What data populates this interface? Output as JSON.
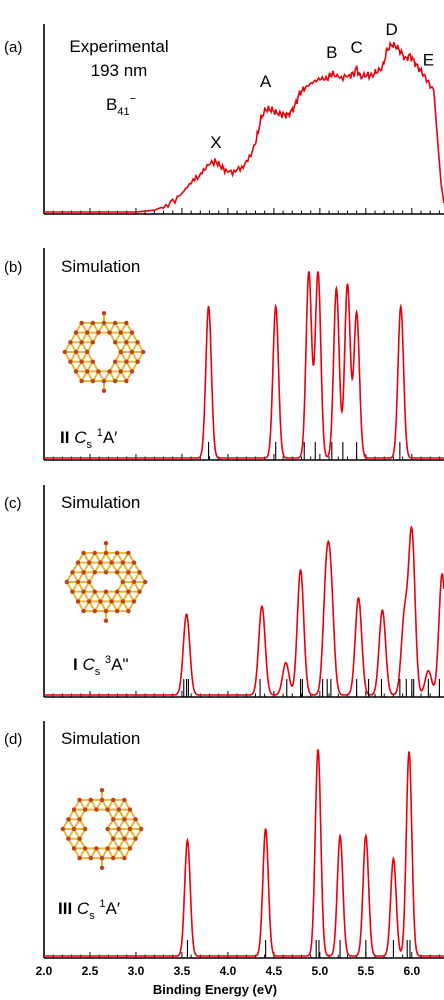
{
  "colors": {
    "curve": "#e8000b",
    "axis": "#000000",
    "stick": "#000000",
    "atom": "#c0401a",
    "bond": "#e8b63a"
  },
  "chart_data": [
    {
      "panel": "(a)",
      "type": "line",
      "title": "Experimental",
      "subtitle": "193 nm",
      "species_main": "B",
      "species_sub": "41",
      "species_sup": "−",
      "x_range": [
        2.0,
        6.35
      ],
      "y_range": [
        0,
        1.0
      ],
      "peak_labels": [
        {
          "text": "X",
          "x": 3.87,
          "y": 0.31
        },
        {
          "text": "A",
          "x": 4.41,
          "y": 0.65
        },
        {
          "text": "B",
          "x": 5.13,
          "y": 0.81
        },
        {
          "text": "C",
          "x": 5.4,
          "y": 0.84
        },
        {
          "text": "D",
          "x": 5.78,
          "y": 0.94
        },
        {
          "text": "E",
          "x": 6.18,
          "y": 0.77
        }
      ],
      "spectrum": [
        [
          2.0,
          0
        ],
        [
          3.0,
          0
        ],
        [
          3.2,
          0.01
        ],
        [
          3.35,
          0.04
        ],
        [
          3.5,
          0.1
        ],
        [
          3.62,
          0.17
        ],
        [
          3.72,
          0.22
        ],
        [
          3.8,
          0.27
        ],
        [
          3.87,
          0.28
        ],
        [
          3.93,
          0.25
        ],
        [
          4.0,
          0.22
        ],
        [
          4.1,
          0.23
        ],
        [
          4.2,
          0.27
        ],
        [
          4.3,
          0.38
        ],
        [
          4.36,
          0.52
        ],
        [
          4.41,
          0.57
        ],
        [
          4.47,
          0.57
        ],
        [
          4.53,
          0.55
        ],
        [
          4.6,
          0.54
        ],
        [
          4.66,
          0.54
        ],
        [
          4.72,
          0.58
        ],
        [
          4.78,
          0.66
        ],
        [
          4.84,
          0.69
        ],
        [
          4.92,
          0.72
        ],
        [
          5.0,
          0.74
        ],
        [
          5.08,
          0.74
        ],
        [
          5.13,
          0.77
        ],
        [
          5.2,
          0.75
        ],
        [
          5.3,
          0.75
        ],
        [
          5.37,
          0.77
        ],
        [
          5.4,
          0.8
        ],
        [
          5.44,
          0.75
        ],
        [
          5.5,
          0.76
        ],
        [
          5.57,
          0.76
        ],
        [
          5.62,
          0.78
        ],
        [
          5.68,
          0.8
        ],
        [
          5.73,
          0.9
        ],
        [
          5.78,
          0.93
        ],
        [
          5.83,
          0.92
        ],
        [
          5.88,
          0.89
        ],
        [
          5.93,
          0.85
        ],
        [
          5.98,
          0.87
        ],
        [
          6.02,
          0.84
        ],
        [
          6.07,
          0.8
        ],
        [
          6.12,
          0.77
        ],
        [
          6.18,
          0.72
        ],
        [
          6.24,
          0.67
        ],
        [
          6.28,
          0.4
        ],
        [
          6.32,
          0.15
        ],
        [
          6.35,
          0.05
        ]
      ]
    },
    {
      "panel": "(b)",
      "type": "line",
      "title": "Simulation",
      "isomer": "II",
      "symmetry": "C",
      "symmetry_sub": "s",
      "state_sup": "1",
      "state": "A′",
      "x_range": [
        2.0,
        6.35
      ],
      "y_range": [
        0,
        1.0
      ],
      "width": 0.03,
      "peaks": [
        {
          "x": 3.79,
          "h": 0.75
        },
        {
          "x": 4.52,
          "h": 0.75
        },
        {
          "x": 4.88,
          "h": 0.92
        },
        {
          "x": 4.98,
          "h": 0.92
        },
        {
          "x": 5.18,
          "h": 0.84
        },
        {
          "x": 5.3,
          "h": 0.86
        },
        {
          "x": 5.4,
          "h": 0.72
        },
        {
          "x": 5.88,
          "h": 0.75
        }
      ],
      "sticks": [
        3.79,
        4.52,
        4.83,
        4.95,
        5.13,
        5.25,
        5.4,
        5.87
      ]
    },
    {
      "panel": "(c)",
      "type": "line",
      "title": "Simulation",
      "isomer": "I",
      "symmetry": "C",
      "symmetry_sub": "s",
      "state_sup": "3",
      "state": "A\"",
      "x_range": [
        2.0,
        6.35
      ],
      "y_range": [
        0,
        1.0
      ],
      "width": 0.035,
      "peaks": [
        {
          "x": 3.55,
          "h": 0.4
        },
        {
          "x": 4.37,
          "h": 0.44
        },
        {
          "x": 4.63,
          "h": 0.16
        },
        {
          "x": 4.79,
          "h": 0.62
        },
        {
          "x": 5.07,
          "h": 0.52
        },
        {
          "x": 5.12,
          "h": 0.46
        },
        {
          "x": 5.42,
          "h": 0.48
        },
        {
          "x": 5.68,
          "h": 0.42
        },
        {
          "x": 5.92,
          "h": 0.38
        },
        {
          "x": 6.0,
          "h": 0.8
        },
        {
          "x": 6.18,
          "h": 0.12
        },
        {
          "x": 6.33,
          "h": 0.6
        }
      ],
      "sticks": [
        3.52,
        3.55,
        3.57,
        4.35,
        4.64,
        4.79,
        4.81,
        5.03,
        5.08,
        5.12,
        5.4,
        5.53,
        5.67,
        5.87,
        5.94,
        6.0,
        6.02,
        6.18,
        6.3
      ]
    },
    {
      "panel": "(d)",
      "type": "line",
      "title": "Simulation",
      "isomer": "III",
      "symmetry": "C",
      "symmetry_sub": "s",
      "state_sup": "1",
      "state": "A′",
      "x_range": [
        2.0,
        6.35
      ],
      "y_range": [
        0,
        1.0
      ],
      "width": 0.03,
      "peaks": [
        {
          "x": 3.56,
          "h": 0.51
        },
        {
          "x": 4.41,
          "h": 0.56
        },
        {
          "x": 4.98,
          "h": 0.91
        },
        {
          "x": 5.22,
          "h": 0.53
        },
        {
          "x": 5.5,
          "h": 0.53
        },
        {
          "x": 5.8,
          "h": 0.43
        },
        {
          "x": 5.97,
          "h": 0.9
        }
      ],
      "sticks": [
        3.56,
        4.41,
        4.96,
        4.99,
        5.22,
        5.5,
        5.8,
        5.95,
        5.98
      ]
    }
  ],
  "x_axis": {
    "label": "Binding Energy (eV)",
    "ticks": [
      "2.0",
      "2.5",
      "3.0",
      "3.5",
      "4.0",
      "4.5",
      "5.0",
      "5.5",
      "6.0"
    ]
  }
}
